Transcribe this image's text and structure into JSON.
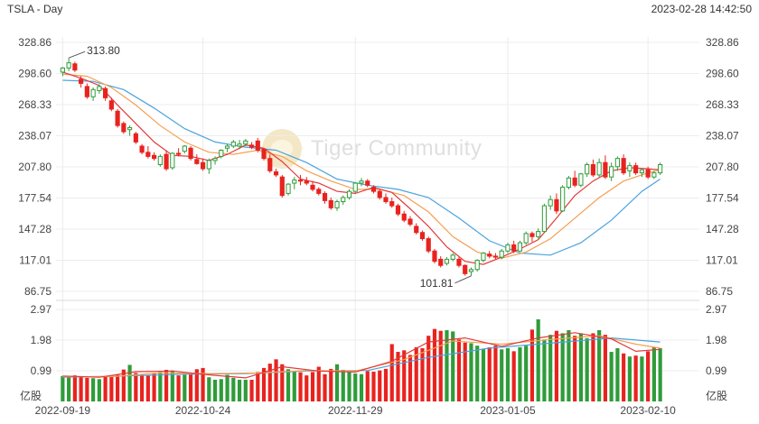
{
  "header": {
    "title": "TSLA - Day",
    "timestamp": "2023-02-28 14:42:50"
  },
  "watermark": {
    "text": "Tiger Community"
  },
  "colors": {
    "up": "#2f9c3a",
    "down": "#e8231f",
    "ma_short": "#e23a3a",
    "ma_mid": "#f5a053",
    "ma_long": "#4aa3df",
    "grid": "#ececec",
    "axis_text": "#444444"
  },
  "chart_data": [
    {
      "type": "candlestick",
      "title": "",
      "price_ticks": [
        "328.86",
        "298.60",
        "268.33",
        "238.07",
        "207.80",
        "177.54",
        "147.28",
        "117.01",
        "86.75"
      ],
      "ylim": [
        86.75,
        328.86
      ],
      "annotations": {
        "high_label": "313.80",
        "low_label": "101.81"
      },
      "x_labels": [
        "2022-09-19",
        "2022-10-24",
        "2022-11-29",
        "2023-01-05",
        "2023-02-10"
      ],
      "ohlc": [
        [
          300.0,
          305.0,
          296.0,
          304.0
        ],
        [
          304.0,
          313.8,
          301.0,
          309.0
        ],
        [
          308.0,
          310.0,
          300.0,
          302.0
        ],
        [
          293.0,
          296.0,
          285.0,
          289.0
        ],
        [
          286.0,
          289.0,
          274.0,
          276.0
        ],
        [
          276.0,
          285.0,
          272.0,
          283.0
        ],
        [
          282.0,
          288.0,
          279.0,
          286.0
        ],
        [
          284.0,
          286.0,
          272.0,
          275.0
        ],
        [
          272.0,
          275.0,
          262.0,
          264.0
        ],
        [
          262.0,
          264.0,
          246.0,
          248.0
        ],
        [
          250.0,
          252.0,
          240.0,
          242.0
        ],
        [
          244.0,
          248.0,
          238.0,
          246.0
        ],
        [
          240.0,
          242.0,
          230.0,
          232.0
        ],
        [
          228.0,
          230.0,
          220.0,
          222.0
        ],
        [
          222.0,
          228.0,
          216.0,
          218.0
        ],
        [
          219.0,
          222.0,
          214.0,
          216.0
        ],
        [
          210.0,
          220.0,
          208.0,
          218.0
        ],
        [
          220.0,
          224.0,
          204.0,
          206.0
        ],
        [
          207.0,
          222.0,
          205.0,
          221.0
        ],
        [
          221.0,
          226.0,
          218.0,
          220.0
        ],
        [
          223.0,
          229.0,
          221.0,
          228.0
        ],
        [
          226.0,
          228.0,
          214.0,
          216.0
        ],
        [
          215.0,
          220.0,
          210.0,
          211.0
        ],
        [
          212.0,
          216.0,
          204.0,
          206.0
        ],
        [
          206.0,
          216.0,
          201.0,
          214.0
        ],
        [
          214.0,
          218.0,
          210.0,
          216.0
        ],
        [
          218.0,
          225.0,
          216.0,
          224.0
        ],
        [
          226.0,
          230.0,
          222.0,
          228.0
        ],
        [
          228.0,
          234.0,
          226.0,
          232.0
        ],
        [
          228.0,
          234.0,
          225.0,
          230.0
        ],
        [
          230.0,
          235.0,
          228.0,
          233.0
        ],
        [
          229.0,
          232.0,
          225.0,
          227.0
        ],
        [
          233.0,
          236.0,
          222.0,
          224.0
        ],
        [
          225.0,
          226.0,
          214.0,
          216.0
        ],
        [
          216.0,
          220.0,
          202.0,
          204.0
        ],
        [
          203.0,
          206.0,
          198.0,
          200.0
        ],
        [
          198.0,
          200.0,
          178.0,
          180.0
        ],
        [
          182.0,
          192.0,
          180.0,
          191.0
        ],
        [
          192.0,
          198.0,
          186.0,
          195.0
        ],
        [
          195.0,
          200.0,
          190.0,
          194.0
        ],
        [
          194.0,
          198.0,
          190.0,
          192.0
        ],
        [
          190.0,
          194.0,
          184.0,
          186.0
        ],
        [
          186.0,
          188.0,
          180.0,
          182.0
        ],
        [
          182.0,
          184.0,
          172.0,
          175.0
        ],
        [
          175.0,
          178.0,
          166.0,
          168.0
        ],
        [
          168.0,
          176.0,
          165.0,
          174.0
        ],
        [
          174.0,
          180.0,
          171.0,
          178.0
        ],
        [
          178.0,
          186.0,
          176.0,
          184.0
        ],
        [
          184.0,
          193.0,
          182.0,
          192.0
        ],
        [
          192.0,
          197.0,
          189.0,
          194.0
        ],
        [
          194.0,
          196.0,
          188.0,
          190.0
        ],
        [
          188.0,
          190.0,
          182.0,
          184.0
        ],
        [
          184.0,
          186.0,
          176.0,
          178.0
        ],
        [
          178.0,
          182.0,
          172.0,
          174.0
        ],
        [
          174.0,
          178.0,
          168.0,
          170.0
        ],
        [
          170.0,
          172.0,
          160.0,
          162.0
        ],
        [
          162.0,
          165.0,
          154.0,
          156.0
        ],
        [
          157.0,
          160.0,
          150.0,
          152.0
        ],
        [
          150.0,
          153.0,
          142.0,
          144.0
        ],
        [
          144.0,
          146.0,
          136.0,
          138.0
        ],
        [
          138.0,
          140.0,
          124.0,
          126.0
        ],
        [
          126.0,
          128.0,
          114.0,
          116.0
        ],
        [
          118.0,
          121.0,
          110.0,
          112.0
        ],
        [
          114.0,
          120.0,
          112.0,
          118.0
        ],
        [
          118.0,
          124.0,
          116.0,
          122.0
        ],
        [
          118.0,
          120.0,
          110.0,
          112.0
        ],
        [
          112.0,
          113.0,
          102.0,
          104.0
        ],
        [
          106.0,
          110.0,
          101.81,
          108.0
        ],
        [
          108.0,
          118.0,
          106.0,
          117.0
        ],
        [
          117.0,
          125.0,
          115.0,
          124.0
        ],
        [
          123.0,
          126.0,
          119.0,
          121.0
        ],
        [
          121.0,
          124.0,
          118.0,
          120.0
        ],
        [
          120.0,
          128.0,
          118.0,
          126.0
        ],
        [
          126.0,
          134.0,
          124.0,
          132.0
        ],
        [
          132.0,
          136.0,
          124.0,
          126.0
        ],
        [
          126.0,
          136.0,
          125.0,
          134.0
        ],
        [
          134.0,
          145.0,
          132.0,
          143.0
        ],
        [
          143.0,
          145.0,
          135.0,
          140.0
        ],
        [
          140.0,
          148.0,
          138.0,
          145.0
        ],
        [
          145.0,
          172.0,
          144.0,
          170.0
        ],
        [
          170.0,
          180.0,
          166.0,
          176.0
        ],
        [
          176.0,
          182.0,
          162.0,
          165.0
        ],
        [
          165.0,
          190.0,
          164.0,
          188.0
        ],
        [
          188.0,
          199.0,
          186.0,
          197.0
        ],
        [
          197.0,
          204.0,
          188.0,
          190.0
        ],
        [
          190.0,
          202.0,
          188.0,
          201.0
        ],
        [
          201.0,
          212.0,
          198.0,
          210.0
        ],
        [
          210.0,
          215.0,
          198.0,
          200.0
        ],
        [
          200.0,
          216.0,
          198.0,
          212.0
        ],
        [
          212.0,
          219.0,
          196.0,
          198.0
        ],
        [
          198.0,
          212.0,
          194.0,
          208.0
        ],
        [
          208.0,
          218.0,
          204.0,
          216.0
        ],
        [
          216.0,
          220.0,
          200.0,
          202.0
        ],
        [
          204.0,
          212.0,
          198.0,
          209.0
        ],
        [
          209.0,
          212.0,
          200.0,
          202.0
        ],
        [
          202.0,
          206.0,
          198.0,
          205.0
        ],
        [
          205.0,
          208.0,
          196.0,
          198.0
        ],
        [
          198.0,
          204.0,
          196.0,
          202.0
        ],
        [
          202.0,
          212.0,
          200.0,
          210.0
        ]
      ],
      "ma_short": [
        [
          0,
          300
        ],
        [
          3,
          294
        ],
        [
          6,
          287
        ],
        [
          9,
          268
        ],
        [
          12,
          250
        ],
        [
          15,
          232
        ],
        [
          18,
          219
        ],
        [
          21,
          218
        ],
        [
          24,
          214
        ],
        [
          27,
          220
        ],
        [
          30,
          229
        ],
        [
          33,
          226
        ],
        [
          36,
          213
        ],
        [
          39,
          196
        ],
        [
          42,
          192
        ],
        [
          45,
          184
        ],
        [
          48,
          182
        ],
        [
          51,
          188
        ],
        [
          54,
          183
        ],
        [
          57,
          167
        ],
        [
          60,
          150
        ],
        [
          63,
          130
        ],
        [
          66,
          116
        ],
        [
          69,
          113
        ],
        [
          72,
          120
        ],
        [
          75,
          128
        ],
        [
          78,
          137
        ],
        [
          81,
          158
        ],
        [
          84,
          180
        ],
        [
          87,
          194
        ],
        [
          90,
          204
        ],
        [
          93,
          207
        ],
        [
          96,
          206
        ],
        [
          98,
          205
        ]
      ],
      "ma_mid": [
        [
          0,
          298
        ],
        [
          4,
          296
        ],
        [
          8,
          285
        ],
        [
          12,
          268
        ],
        [
          16,
          248
        ],
        [
          20,
          232
        ],
        [
          24,
          222
        ],
        [
          28,
          220
        ],
        [
          32,
          224
        ],
        [
          36,
          218
        ],
        [
          40,
          204
        ],
        [
          44,
          194
        ],
        [
          48,
          186
        ],
        [
          52,
          186
        ],
        [
          56,
          180
        ],
        [
          60,
          164
        ],
        [
          64,
          140
        ],
        [
          68,
          125
        ],
        [
          72,
          119
        ],
        [
          76,
          125
        ],
        [
          80,
          138
        ],
        [
          84,
          158
        ],
        [
          88,
          178
        ],
        [
          92,
          194
        ],
        [
          96,
          202
        ],
        [
          98,
          205
        ]
      ],
      "ma_long": [
        [
          0,
          292
        ],
        [
          5,
          291
        ],
        [
          10,
          283
        ],
        [
          15,
          265
        ],
        [
          20,
          245
        ],
        [
          25,
          232
        ],
        [
          30,
          227
        ],
        [
          35,
          224
        ],
        [
          40,
          212
        ],
        [
          45,
          196
        ],
        [
          50,
          190
        ],
        [
          55,
          186
        ],
        [
          60,
          178
        ],
        [
          65,
          158
        ],
        [
          70,
          136
        ],
        [
          75,
          124
        ],
        [
          80,
          122
        ],
        [
          85,
          134
        ],
        [
          90,
          156
        ],
        [
          95,
          184
        ],
        [
          98,
          196
        ]
      ]
    },
    {
      "type": "bar",
      "title": "",
      "unit": "亿股",
      "volume_ticks": [
        "2.97",
        "1.98",
        "0.99"
      ],
      "ylim": [
        0,
        2.97
      ],
      "values": [
        0.82,
        0.78,
        0.84,
        0.8,
        0.76,
        0.75,
        0.72,
        0.8,
        0.82,
        0.86,
        1.03,
        1.18,
        0.92,
        0.86,
        0.84,
        0.92,
        0.95,
        1.02,
        1.0,
        0.84,
        0.86,
        0.92,
        1.04,
        1.08,
        0.78,
        0.7,
        0.72,
        0.86,
        0.76,
        0.7,
        0.7,
        0.7,
        0.95,
        1.08,
        1.22,
        1.36,
        1.2,
        1.04,
        0.96,
        0.94,
        0.84,
        0.95,
        1.12,
        0.88,
        1.05,
        1.2,
        1.02,
        0.95,
        0.9,
        0.88,
        0.98,
        0.96,
        1.0,
        1.05,
        1.85,
        1.6,
        1.65,
        1.5,
        1.75,
        1.72,
        2.12,
        2.34,
        2.28,
        2.3,
        2.26,
        2.0,
        1.9,
        1.88,
        1.8,
        1.7,
        1.75,
        1.8,
        1.68,
        1.72,
        1.62,
        1.75,
        1.8,
        2.32,
        2.65,
        2.0,
        2.15,
        2.28,
        2.2,
        2.3,
        2.12,
        2.2,
        2.04,
        2.2,
        2.3,
        2.15,
        1.6,
        1.72,
        1.55,
        1.45,
        1.48,
        1.45,
        1.62,
        1.75,
        1.72
      ],
      "ma_short": [
        [
          0,
          0.82
        ],
        [
          6,
          0.78
        ],
        [
          12,
          0.96
        ],
        [
          18,
          0.98
        ],
        [
          24,
          0.86
        ],
        [
          30,
          0.76
        ],
        [
          36,
          1.12
        ],
        [
          42,
          0.98
        ],
        [
          48,
          0.95
        ],
        [
          54,
          1.3
        ],
        [
          60,
          1.92
        ],
        [
          66,
          2.05
        ],
        [
          72,
          1.78
        ],
        [
          78,
          2.05
        ],
        [
          84,
          2.22
        ],
        [
          90,
          2.02
        ],
        [
          94,
          1.62
        ],
        [
          98,
          1.68
        ]
      ],
      "ma_mid": [
        [
          0,
          0.8
        ],
        [
          8,
          0.8
        ],
        [
          16,
          0.92
        ],
        [
          24,
          0.9
        ],
        [
          32,
          0.92
        ],
        [
          40,
          1.0
        ],
        [
          48,
          0.98
        ],
        [
          56,
          1.35
        ],
        [
          64,
          1.95
        ],
        [
          72,
          1.85
        ],
        [
          80,
          2.0
        ],
        [
          88,
          2.12
        ],
        [
          94,
          1.85
        ],
        [
          98,
          1.72
        ]
      ],
      "ma_long": [
        [
          0,
          0.78
        ],
        [
          10,
          0.82
        ],
        [
          20,
          0.88
        ],
        [
          30,
          0.9
        ],
        [
          40,
          0.98
        ],
        [
          50,
          1.0
        ],
        [
          60,
          1.42
        ],
        [
          70,
          1.72
        ],
        [
          80,
          1.88
        ],
        [
          90,
          2.05
        ],
        [
          98,
          1.92
        ]
      ]
    }
  ]
}
